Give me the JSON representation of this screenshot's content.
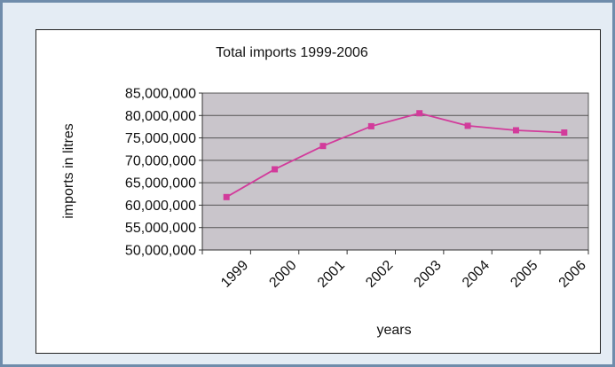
{
  "chart_data": {
    "type": "line",
    "title": "Total imports 1999-2006",
    "xlabel": "years",
    "ylabel": "imports in litres",
    "categories": [
      "1999",
      "2000",
      "2001",
      "2002",
      "2003",
      "2004",
      "2005",
      "2006"
    ],
    "series": [
      {
        "values": [
          61800000,
          68000000,
          73200000,
          77600000,
          80500000,
          77700000,
          76700000,
          76200000
        ],
        "color": "#d23b9b",
        "marker": "square"
      }
    ],
    "ylim": [
      50000000,
      85000000
    ],
    "yticks": [
      50000000,
      55000000,
      60000000,
      65000000,
      70000000,
      75000000,
      80000000,
      85000000
    ],
    "ytick_labels": [
      "50,000,000",
      "55,000,000",
      "60,000,000",
      "65,000,000",
      "70,000,000",
      "75,000,000",
      "80,000,000",
      "85,000,000"
    ],
    "grid": true,
    "legend": "none",
    "plot_background": "#c9c5cb"
  }
}
